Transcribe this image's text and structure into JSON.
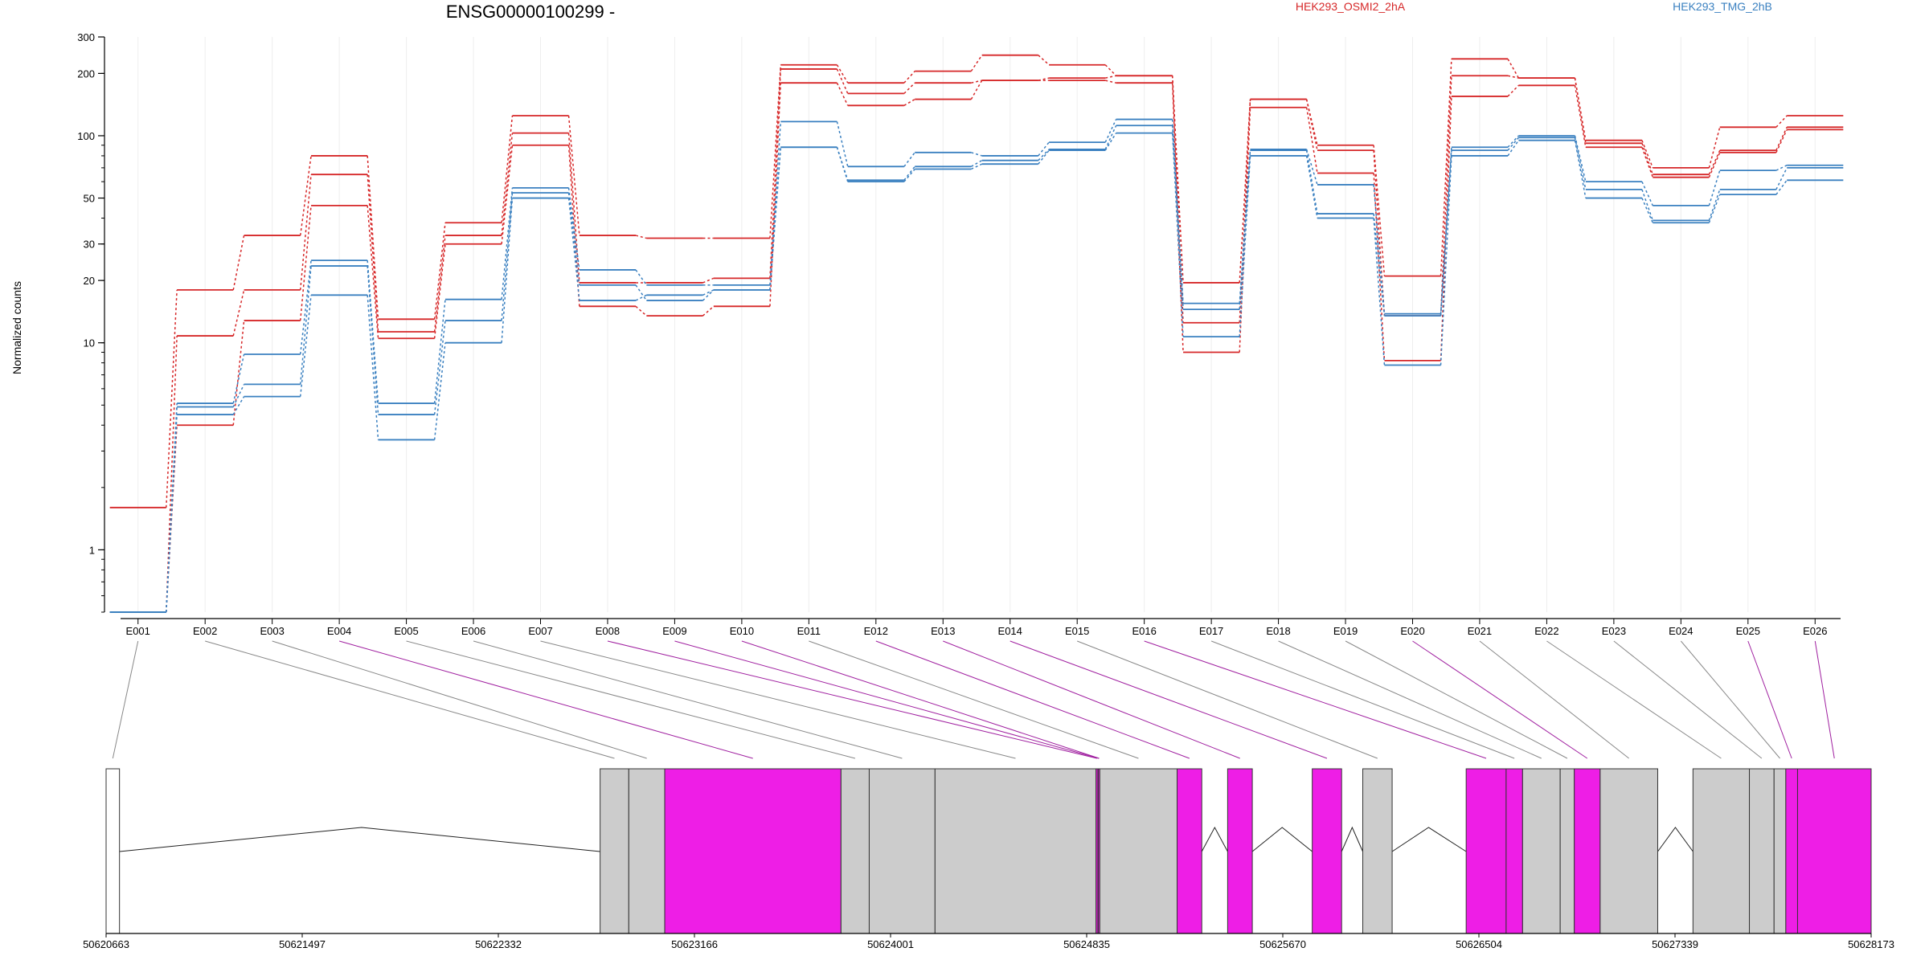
{
  "chart_data": {
    "type": "line",
    "title": "ENSG00000100299 -",
    "ylabel": "Normalized counts",
    "y_scale": "log",
    "ylim": [
      0.5,
      300
    ],
    "y_ticks": [
      1,
      10,
      20,
      30,
      50,
      100,
      200,
      300
    ],
    "grid": "vertical",
    "legend_position": "top",
    "colors": {
      "HEK293_OSMI2_2hA": "#d62728",
      "HEK293_TMG_2hB": "#3a80c0"
    },
    "categories": [
      "E001",
      "E002",
      "E003",
      "E004",
      "E005",
      "E006",
      "E007",
      "E008",
      "E009",
      "E010",
      "E011",
      "E012",
      "E013",
      "E014",
      "E015",
      "E016",
      "E017",
      "E018",
      "E019",
      "E020",
      "E021",
      "E022",
      "E023",
      "E024",
      "E025",
      "E026"
    ],
    "series": [
      {
        "name": "HEK293_OSMI2_2hA",
        "values": [
          1.6,
          18,
          33,
          80,
          13,
          38,
          125,
          33,
          32,
          32,
          220,
          180,
          205,
          245,
          220,
          195,
          19.5,
          150,
          90,
          21,
          235,
          190,
          95,
          70,
          110,
          125
        ]
      },
      {
        "name": "HEK293_OSMI2_2hA",
        "values": [
          0.5,
          10.8,
          18,
          65,
          11.3,
          33,
          103,
          19.5,
          19.5,
          20.5,
          210,
          160,
          180,
          185,
          190,
          195,
          12.5,
          150,
          85,
          13.5,
          195,
          190,
          92,
          65,
          85,
          110
        ]
      },
      {
        "name": "HEK293_OSMI2_2hA",
        "values": [
          0.5,
          4,
          12.8,
          46,
          10.5,
          30,
          90,
          15,
          13.5,
          15,
          180,
          140,
          150,
          185,
          185,
          180,
          9,
          137,
          66,
          8.2,
          155,
          175,
          88,
          63,
          83,
          107
        ]
      },
      {
        "name": "HEK293_TMG_2hB",
        "values": [
          0.5,
          5.1,
          8.8,
          25,
          5.1,
          16.2,
          56,
          22.5,
          19,
          19,
          117,
          71,
          83,
          80,
          93,
          120,
          15.5,
          86,
          58,
          13.8,
          88,
          100,
          60,
          46,
          68,
          72
        ]
      },
      {
        "name": "HEK293_TMG_2hB",
        "values": [
          0.5,
          4.9,
          6.3,
          23.5,
          4.5,
          12.8,
          53,
          19,
          16,
          18,
          88,
          61,
          71,
          76,
          86,
          112,
          14.5,
          85,
          42,
          13.5,
          85,
          98,
          55,
          39,
          55,
          70
        ]
      },
      {
        "name": "HEK293_TMG_2hB",
        "values": [
          0.5,
          4.5,
          5.5,
          17,
          3.4,
          10,
          50,
          16,
          17,
          18,
          88,
          60,
          69,
          73,
          85,
          103,
          10.7,
          80,
          40,
          7.8,
          80,
          95,
          50,
          38,
          52,
          61
        ]
      }
    ],
    "gene_model": {
      "coordinate_labels": [
        "50620663",
        "50621497",
        "50622332",
        "50623166",
        "50624001",
        "50624835",
        "50625670",
        "50626504",
        "50627339",
        "50628173"
      ],
      "coord_range": [
        50620663,
        50628173
      ],
      "exons": [
        {
          "id": "E001",
          "start": 50620663,
          "end": 50620720,
          "color": "#ffffff",
          "link": "#888888"
        },
        {
          "id": "E002",
          "start": 50622765,
          "end": 50622887,
          "color": "#cccccc",
          "link": "#888888"
        },
        {
          "id": "E003",
          "start": 50622887,
          "end": 50623040,
          "color": "#cccccc",
          "link": "#888888"
        },
        {
          "id": "E004",
          "start": 50623040,
          "end": 50623790,
          "color": "#ee1ee6",
          "link": "#a020a0"
        },
        {
          "id": "E005",
          "start": 50623790,
          "end": 50623910,
          "color": "#cccccc",
          "link": "#888888"
        },
        {
          "id": "E006",
          "start": 50623910,
          "end": 50624190,
          "color": "#cccccc",
          "link": "#888888"
        },
        {
          "id": "E007",
          "start": 50624190,
          "end": 50624875,
          "color": "#cccccc",
          "link": "#888888"
        },
        {
          "id": "E008",
          "start": 50624875,
          "end": 50624883,
          "color": "#ee1ee6",
          "link": "#a020a0"
        },
        {
          "id": "E009",
          "start": 50624883,
          "end": 50624885,
          "color": "#cccccc",
          "link": "#a020a0"
        },
        {
          "id": "E010",
          "start": 50624885,
          "end": 50624891,
          "color": "#ee1ee6",
          "link": "#a020a0"
        },
        {
          "id": "E011",
          "start": 50624891,
          "end": 50625220,
          "color": "#cccccc",
          "link": "#888888"
        },
        {
          "id": "E012",
          "start": 50625220,
          "end": 50625325,
          "color": "#ee1ee6",
          "link": "#a020a0"
        },
        {
          "id": "E013",
          "start": 50625435,
          "end": 50625540,
          "color": "#ee1ee6",
          "link": "#a020a0"
        },
        {
          "id": "E014",
          "start": 50625795,
          "end": 50625920,
          "color": "#ee1ee6",
          "link": "#a020a0"
        },
        {
          "id": "E015",
          "start": 50626010,
          "end": 50626135,
          "color": "#cccccc",
          "link": "#888888"
        },
        {
          "id": "E016",
          "start": 50626450,
          "end": 50626620,
          "color": "#ee1ee6",
          "link": "#a020a0"
        },
        {
          "id": "E017",
          "start": 50626620,
          "end": 50626690,
          "color": "#ee1ee6",
          "link": "#888888"
        },
        {
          "id": "E018",
          "start": 50626690,
          "end": 50626850,
          "color": "#cccccc",
          "link": "#888888"
        },
        {
          "id": "E019",
          "start": 50626850,
          "end": 50626910,
          "color": "#cccccc",
          "link": "#888888"
        },
        {
          "id": "E020",
          "start": 50626910,
          "end": 50627020,
          "color": "#ee1ee6",
          "link": "#a020a0"
        },
        {
          "id": "E021",
          "start": 50627020,
          "end": 50627265,
          "color": "#cccccc",
          "link": "#888888"
        },
        {
          "id": "E022",
          "start": 50627415,
          "end": 50627655,
          "color": "#cccccc",
          "link": "#888888"
        },
        {
          "id": "E023",
          "start": 50627655,
          "end": 50627760,
          "color": "#cccccc",
          "link": "#888888"
        },
        {
          "id": "E024",
          "start": 50627760,
          "end": 50627810,
          "color": "#cccccc",
          "link": "#888888"
        },
        {
          "id": "E025",
          "start": 50627810,
          "end": 50627860,
          "color": "#ee1ee6",
          "link": "#a020a0"
        },
        {
          "id": "E026",
          "start": 50627860,
          "end": 50628173,
          "color": "#ee1ee6",
          "link": "#a020a0"
        }
      ],
      "introns": [
        {
          "from": 50620720,
          "to": 50622765,
          "peak": 50621750
        },
        {
          "from": 50625325,
          "to": 50625435,
          "peak": 50625380
        },
        {
          "from": 50625540,
          "to": 50625795,
          "peak": 50625667
        },
        {
          "from": 50625920,
          "to": 50626010,
          "peak": 50625965
        },
        {
          "from": 50626135,
          "to": 50626450,
          "peak": 50626290
        },
        {
          "from": 50627265,
          "to": 50627415,
          "peak": 50627340
        }
      ]
    }
  }
}
